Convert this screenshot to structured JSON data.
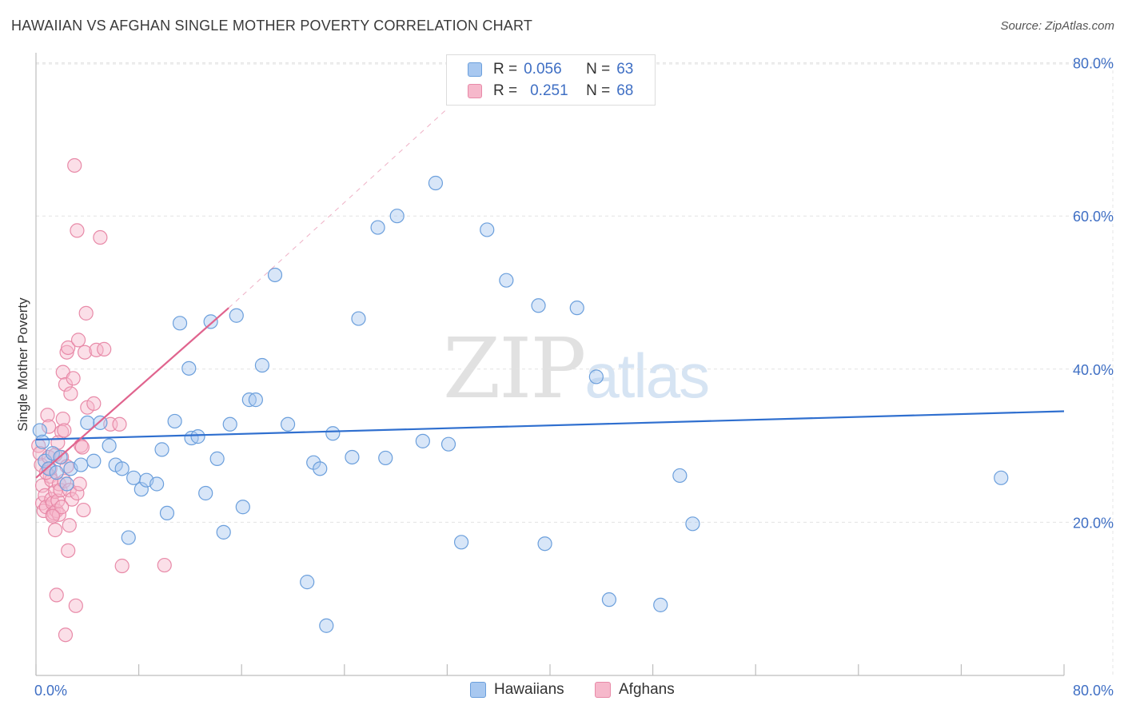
{
  "header": {
    "title": "HAWAIIAN VS AFGHAN SINGLE MOTHER POVERTY CORRELATION CHART",
    "source": "Source: ZipAtlas.com"
  },
  "watermark": {
    "zip": "ZIP",
    "atlas": "atlas"
  },
  "legend": {
    "rows": [
      {
        "r_label": "R =",
        "r_value": "0.056",
        "n_label": "N =",
        "n_value": "63",
        "color": "#a8c8f0"
      },
      {
        "r_label": "R =",
        "r_value": "0.251",
        "n_label": "N =",
        "n_value": "68",
        "color": "#f6b8cb"
      }
    ]
  },
  "bottom_legend": {
    "hawaiians": "Hawaiians",
    "afghans": "Afghans"
  },
  "chart_data": {
    "type": "scatter",
    "title": "HAWAIIAN VS AFGHAN SINGLE MOTHER POVERTY CORRELATION CHART",
    "xlabel": "",
    "ylabel": "Single Mother Poverty",
    "xlim": [
      0,
      80
    ],
    "ylim": [
      0,
      80
    ],
    "x_tick_labels": [
      "0.0%",
      "80.0%"
    ],
    "y_ticks": [
      20,
      40,
      60,
      80
    ],
    "y_tick_labels": [
      "20.0%",
      "40.0%",
      "60.0%",
      "80.0%"
    ],
    "grid": true,
    "colors": {
      "hawaiians_fill": "#a8c8f0",
      "hawaiians_stroke": "#6b9fdc",
      "hawaiians_line": "#2f6fcf",
      "afghans_fill": "#f6b8cb",
      "afghans_stroke": "#e88aa8",
      "afghans_line": "#e0648e",
      "axis_text": "#3f6fc4"
    },
    "series": [
      {
        "name": "Hawaiians",
        "R": 0.056,
        "N": 63,
        "trend": {
          "x0": 0,
          "y0": 30.8,
          "x1": 80,
          "y1": 34.5
        },
        "points": [
          [
            0.3,
            32.0
          ],
          [
            0.5,
            30.5
          ],
          [
            0.7,
            28.0
          ],
          [
            1.0,
            27.0
          ],
          [
            1.3,
            29.0
          ],
          [
            1.6,
            26.5
          ],
          [
            1.9,
            28.5
          ],
          [
            2.4,
            25.0
          ],
          [
            2.7,
            27.0
          ],
          [
            3.5,
            27.5
          ],
          [
            4.0,
            33.0
          ],
          [
            4.5,
            28.0
          ],
          [
            5.0,
            33.0
          ],
          [
            5.7,
            30.0
          ],
          [
            6.2,
            27.5
          ],
          [
            6.7,
            27.0
          ],
          [
            7.2,
            18.0
          ],
          [
            7.6,
            25.8
          ],
          [
            8.2,
            24.3
          ],
          [
            8.6,
            25.5
          ],
          [
            9.4,
            25.0
          ],
          [
            9.8,
            29.5
          ],
          [
            10.2,
            21.2
          ],
          [
            10.8,
            33.2
          ],
          [
            11.2,
            46.0
          ],
          [
            11.9,
            40.1
          ],
          [
            12.1,
            31.0
          ],
          [
            12.6,
            31.2
          ],
          [
            13.2,
            23.8
          ],
          [
            13.6,
            46.2
          ],
          [
            14.1,
            28.3
          ],
          [
            14.6,
            18.7
          ],
          [
            15.1,
            32.8
          ],
          [
            15.6,
            47.0
          ],
          [
            16.1,
            22.0
          ],
          [
            16.6,
            36.0
          ],
          [
            17.1,
            36.0
          ],
          [
            17.6,
            40.5
          ],
          [
            18.6,
            52.3
          ],
          [
            19.6,
            32.8
          ],
          [
            21.1,
            12.2
          ],
          [
            21.6,
            27.8
          ],
          [
            22.1,
            27.0
          ],
          [
            22.6,
            6.5
          ],
          [
            23.1,
            31.6
          ],
          [
            24.6,
            28.5
          ],
          [
            25.1,
            46.6
          ],
          [
            26.6,
            58.5
          ],
          [
            27.2,
            28.4
          ],
          [
            28.1,
            60.0
          ],
          [
            30.1,
            30.6
          ],
          [
            31.1,
            64.3
          ],
          [
            32.1,
            30.2
          ],
          [
            33.1,
            17.4
          ],
          [
            35.1,
            58.2
          ],
          [
            36.6,
            51.6
          ],
          [
            39.1,
            48.3
          ],
          [
            39.6,
            17.2
          ],
          [
            42.1,
            48.0
          ],
          [
            43.6,
            39.0
          ],
          [
            44.6,
            9.9
          ],
          [
            48.6,
            9.2
          ],
          [
            50.1,
            26.1
          ],
          [
            51.1,
            19.8
          ],
          [
            75.1,
            25.8
          ]
        ]
      },
      {
        "name": "Afghans",
        "R": 0.251,
        "N": 68,
        "trend": {
          "x0": 0,
          "y0": 25.8,
          "x1": 15,
          "y1": 48.0,
          "x1_ext": 32,
          "y1_ext": 74.0
        },
        "points": [
          [
            0.2,
            30.0
          ],
          [
            0.3,
            29.0
          ],
          [
            0.4,
            27.5
          ],
          [
            0.5,
            24.8
          ],
          [
            0.5,
            22.5
          ],
          [
            0.6,
            21.5
          ],
          [
            0.7,
            23.5
          ],
          [
            0.8,
            22.0
          ],
          [
            0.9,
            34.0
          ],
          [
            1.0,
            32.5
          ],
          [
            1.0,
            28.5
          ],
          [
            1.1,
            26.0
          ],
          [
            1.2,
            25.5
          ],
          [
            1.2,
            23.0
          ],
          [
            1.3,
            21.0
          ],
          [
            1.3,
            22.5
          ],
          [
            1.4,
            21.2
          ],
          [
            1.5,
            24.0
          ],
          [
            1.5,
            19.0
          ],
          [
            1.6,
            21.5
          ],
          [
            1.6,
            10.5
          ],
          [
            1.7,
            22.8
          ],
          [
            1.8,
            25.0
          ],
          [
            1.8,
            21.0
          ],
          [
            1.9,
            24.2
          ],
          [
            2.0,
            31.8
          ],
          [
            2.0,
            28.5
          ],
          [
            2.1,
            33.5
          ],
          [
            2.1,
            39.6
          ],
          [
            2.2,
            32.0
          ],
          [
            2.2,
            25.4
          ],
          [
            2.3,
            38.0
          ],
          [
            2.3,
            5.3
          ],
          [
            2.4,
            42.2
          ],
          [
            2.5,
            42.8
          ],
          [
            2.5,
            16.3
          ],
          [
            2.6,
            24.2
          ],
          [
            2.6,
            19.6
          ],
          [
            2.7,
            36.8
          ],
          [
            2.8,
            23.0
          ],
          [
            2.9,
            38.8
          ],
          [
            3.0,
            66.6
          ],
          [
            3.1,
            9.1
          ],
          [
            3.2,
            58.1
          ],
          [
            3.2,
            23.8
          ],
          [
            3.3,
            43.8
          ],
          [
            3.4,
            25.0
          ],
          [
            3.5,
            30.0
          ],
          [
            3.6,
            29.8
          ],
          [
            3.7,
            21.6
          ],
          [
            3.8,
            42.2
          ],
          [
            3.9,
            47.3
          ],
          [
            4.0,
            35.0
          ],
          [
            4.5,
            35.5
          ],
          [
            4.7,
            42.5
          ],
          [
            5.0,
            57.2
          ],
          [
            5.3,
            42.6
          ],
          [
            5.8,
            32.8
          ],
          [
            6.5,
            32.8
          ],
          [
            6.7,
            14.3
          ],
          [
            10.0,
            14.4
          ],
          [
            1.1,
            27.0
          ],
          [
            1.5,
            28.8
          ],
          [
            0.8,
            26.5
          ],
          [
            2.0,
            22.0
          ],
          [
            1.3,
            20.8
          ],
          [
            2.4,
            27.3
          ],
          [
            1.7,
            30.4
          ]
        ]
      }
    ]
  }
}
